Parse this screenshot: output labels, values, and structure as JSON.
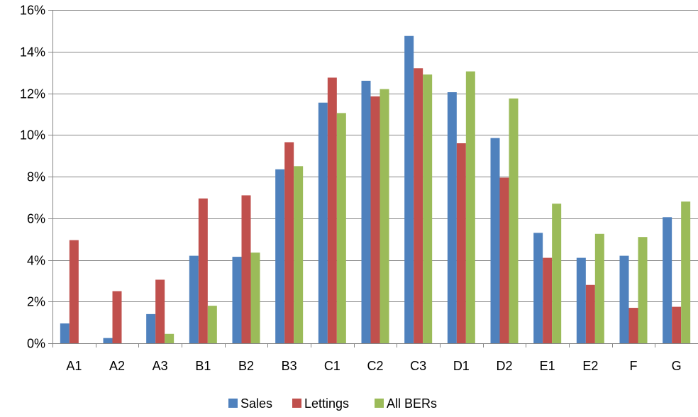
{
  "colors": {
    "Sales": "#4f81bd",
    "Lettings": "#c0504d",
    "All BERs": "#9bbb59",
    "gridline": "#868686",
    "axis": "#868686"
  },
  "chart_data": {
    "type": "bar",
    "title": "",
    "xlabel": "",
    "ylabel": "",
    "ylim": [
      0,
      16
    ],
    "y_tick_step": 2,
    "y_unit": "%",
    "grid": true,
    "legend_position": "bottom",
    "categories": [
      "A1",
      "A2",
      "A3",
      "B1",
      "B2",
      "B3",
      "C1",
      "C2",
      "C3",
      "D1",
      "D2",
      "E1",
      "E2",
      "F",
      "G"
    ],
    "series": [
      {
        "name": "Sales",
        "values": [
          0.95,
          0.25,
          1.4,
          4.2,
          4.15,
          8.35,
          11.55,
          12.6,
          14.75,
          12.05,
          9.85,
          5.3,
          4.1,
          4.2,
          6.05
        ]
      },
      {
        "name": "Lettings",
        "values": [
          4.95,
          2.5,
          3.05,
          6.95,
          7.1,
          9.65,
          12.75,
          11.85,
          13.2,
          9.6,
          7.95,
          4.1,
          2.8,
          1.7,
          1.75
        ]
      },
      {
        "name": "All BERs",
        "values": [
          0,
          0,
          0.45,
          1.8,
          4.35,
          8.5,
          11.05,
          12.2,
          12.9,
          13.05,
          11.75,
          6.7,
          5.25,
          5.1,
          6.8
        ]
      }
    ]
  }
}
